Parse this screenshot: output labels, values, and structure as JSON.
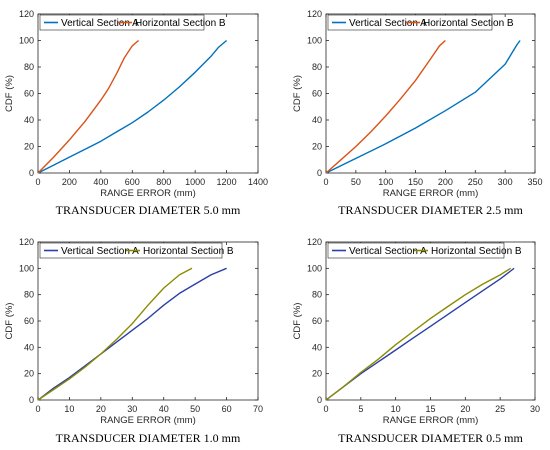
{
  "chart_data": [
    {
      "type": "line",
      "caption": "TRANSDUCER DIAMETER 5.0 mm",
      "xlabel": "RANGE ERROR (mm)",
      "ylabel": "CDF (%)",
      "xlim": [
        0,
        1400
      ],
      "ylim": [
        0,
        120
      ],
      "xticks": [
        0,
        200,
        400,
        600,
        800,
        1000,
        1200,
        1400
      ],
      "yticks": [
        0,
        20,
        40,
        60,
        80,
        100,
        120
      ],
      "legend_position": "top",
      "series": [
        {
          "name": "Vertical Section A",
          "color": "#0072BD",
          "x": [
            0,
            100,
            200,
            300,
            400,
            500,
            600,
            700,
            800,
            900,
            1000,
            1100,
            1150,
            1200
          ],
          "y": [
            0,
            6,
            12,
            18,
            24,
            31,
            38,
            46,
            55,
            65,
            76,
            88,
            95,
            100
          ]
        },
        {
          "name": "Horizontal Section B",
          "color": "#D95319",
          "x": [
            0,
            100,
            200,
            300,
            400,
            450,
            500,
            550,
            600,
            640
          ],
          "y": [
            0,
            12,
            25,
            39,
            55,
            64,
            75,
            87,
            96,
            100
          ]
        }
      ]
    },
    {
      "type": "line",
      "caption": "TRANSDUCER DIAMETER 2.5 mm",
      "xlabel": "RANGE ERROR (mm)",
      "ylabel": "CDF (%)",
      "xlim": [
        0,
        350
      ],
      "ylim": [
        0,
        120
      ],
      "xticks": [
        0,
        50,
        100,
        150,
        200,
        250,
        300,
        350
      ],
      "yticks": [
        0,
        20,
        40,
        60,
        80,
        100,
        120
      ],
      "legend_position": "top",
      "series": [
        {
          "name": "Vertical Section A",
          "color": "#0072BD",
          "x": [
            0,
            50,
            100,
            150,
            200,
            250,
            300,
            320,
            325
          ],
          "y": [
            0,
            11,
            22,
            34,
            47,
            61,
            82,
            97,
            100
          ]
        },
        {
          "name": "Horizontal Section B",
          "color": "#D95319",
          "x": [
            0,
            25,
            50,
            75,
            100,
            125,
            150,
            175,
            190,
            200
          ],
          "y": [
            0,
            10,
            20,
            31,
            43,
            56,
            70,
            86,
            96,
            100
          ]
        }
      ]
    },
    {
      "type": "line",
      "caption": "TRANSDUCER DIAMETER 1.0 mm",
      "xlabel": "RANGE ERROR (mm)",
      "ylabel": "CDF (%)",
      "xlim": [
        0,
        70
      ],
      "ylim": [
        0,
        120
      ],
      "xticks": [
        0,
        10,
        20,
        30,
        40,
        50,
        60,
        70
      ],
      "yticks": [
        0,
        20,
        40,
        60,
        80,
        100,
        120
      ],
      "legend_position": "top",
      "series": [
        {
          "name": "Vertical Section A",
          "color": "#2A3FA8",
          "x": [
            0,
            5,
            10,
            15,
            20,
            25,
            30,
            35,
            40,
            45,
            50,
            55,
            60
          ],
          "y": [
            0,
            9,
            17,
            26,
            35,
            44,
            53,
            62,
            72,
            81,
            88,
            95,
            100
          ]
        },
        {
          "name": "Horizontal Section B",
          "color": "#8B8B00",
          "x": [
            0,
            5,
            10,
            15,
            20,
            25,
            30,
            35,
            40,
            45,
            49
          ],
          "y": [
            0,
            8,
            16,
            25,
            35,
            46,
            58,
            72,
            85,
            95,
            100
          ]
        }
      ]
    },
    {
      "type": "line",
      "caption": "TRANSDUCER DIAMETER 0.5 mm",
      "xlabel": "RANGE ERROR (mm)",
      "ylabel": "CDF (%)",
      "xlim": [
        0,
        30
      ],
      "ylim": [
        0,
        120
      ],
      "xticks": [
        0,
        5,
        10,
        15,
        20,
        25,
        30
      ],
      "yticks": [
        0,
        20,
        40,
        60,
        80,
        100,
        120
      ],
      "legend_position": "top",
      "series": [
        {
          "name": "Vertical Section A",
          "color": "#2A3FA8",
          "x": [
            0,
            2.5,
            5,
            7.5,
            10,
            12.5,
            15,
            17.5,
            20,
            22.5,
            25,
            26.5,
            27
          ],
          "y": [
            0,
            10,
            20,
            29,
            38,
            47,
            56,
            65,
            74,
            83,
            92,
            98,
            100
          ]
        },
        {
          "name": "Horizontal Section B",
          "color": "#8B8B00",
          "x": [
            0,
            2.5,
            5,
            7.5,
            10,
            12.5,
            15,
            17.5,
            20,
            22.5,
            25,
            26.5
          ],
          "y": [
            0,
            10,
            21,
            31,
            42,
            52,
            62,
            71,
            80,
            88,
            95,
            100
          ]
        }
      ]
    }
  ]
}
